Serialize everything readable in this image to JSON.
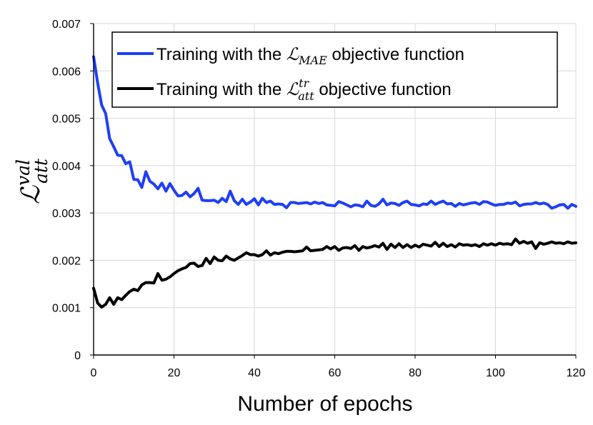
{
  "chart_data": {
    "type": "line",
    "title": "",
    "xlabel": "Number of epochs",
    "ylabel": {
      "script": "ℒ",
      "superscript": "val",
      "subscript": "att"
    },
    "xlim": [
      0,
      120
    ],
    "ylim": [
      0,
      0.007
    ],
    "x_ticks": [
      "0",
      "20",
      "40",
      "60",
      "80",
      "100",
      "120"
    ],
    "y_ticks": [
      "0",
      "0.001",
      "0.002",
      "0.003",
      "0.004",
      "0.005",
      "0.006",
      "0.007"
    ],
    "grid": true,
    "legend_position": "top-right",
    "series": [
      {
        "legend": {
          "prefix": "Training with the ",
          "script": "ℒ",
          "superscript": "",
          "subscript": "MAE",
          "suffix": " objective function"
        },
        "color": "#1f3ff5",
        "values": [
          0.0063,
          0.00575,
          0.00528,
          0.0051,
          0.00457,
          0.0044,
          0.00422,
          0.00421,
          0.00404,
          0.00408,
          0.00371,
          0.0037,
          0.00354,
          0.00387,
          0.00367,
          0.00361,
          0.00351,
          0.00363,
          0.00346,
          0.00362,
          0.00348,
          0.00336,
          0.00337,
          0.00344,
          0.00334,
          0.00341,
          0.00352,
          0.00327,
          0.00326,
          0.00326,
          0.00327,
          0.00322,
          0.00331,
          0.00324,
          0.00346,
          0.00326,
          0.00318,
          0.00329,
          0.00318,
          0.00323,
          0.0033,
          0.00317,
          0.00331,
          0.00322,
          0.00325,
          0.00318,
          0.00319,
          0.00318,
          0.00311,
          0.00322,
          0.00322,
          0.0032,
          0.00321,
          0.00322,
          0.00319,
          0.00323,
          0.0032,
          0.00322,
          0.00317,
          0.00316,
          0.00315,
          0.00324,
          0.00321,
          0.00317,
          0.00313,
          0.00317,
          0.00316,
          0.00313,
          0.00325,
          0.00316,
          0.00314,
          0.00319,
          0.00329,
          0.00317,
          0.00321,
          0.0032,
          0.00316,
          0.00322,
          0.00325,
          0.00318,
          0.00317,
          0.00315,
          0.00319,
          0.00318,
          0.00325,
          0.00318,
          0.00322,
          0.00325,
          0.00319,
          0.0032,
          0.00314,
          0.0032,
          0.00317,
          0.00319,
          0.00321,
          0.00322,
          0.00318,
          0.00324,
          0.00323,
          0.00319,
          0.00316,
          0.00318,
          0.00318,
          0.00321,
          0.0032,
          0.00323,
          0.00315,
          0.00318,
          0.00319,
          0.00319,
          0.00322,
          0.00319,
          0.00321,
          0.00318,
          0.0031,
          0.00313,
          0.00317,
          0.00318,
          0.0031,
          0.00318,
          0.00314
        ]
      },
      {
        "legend": {
          "prefix": "Training with the ",
          "script": "ℒ",
          "superscript": "tr",
          "subscript": "att",
          "suffix": " objective function"
        },
        "color": "#000000",
        "values": [
          0.00141,
          0.0011,
          0.00101,
          0.00107,
          0.00121,
          0.00107,
          0.00121,
          0.00117,
          0.00126,
          0.00134,
          0.00139,
          0.00136,
          0.00148,
          0.00153,
          0.00153,
          0.00152,
          0.00172,
          0.00158,
          0.0016,
          0.00165,
          0.00172,
          0.00178,
          0.00182,
          0.00185,
          0.00193,
          0.00194,
          0.00187,
          0.00189,
          0.00204,
          0.00193,
          0.00207,
          0.002,
          0.00199,
          0.00209,
          0.00203,
          0.002,
          0.00205,
          0.0021,
          0.00216,
          0.00212,
          0.00212,
          0.00209,
          0.00212,
          0.0022,
          0.00211,
          0.00216,
          0.00214,
          0.00217,
          0.00219,
          0.00219,
          0.00218,
          0.00219,
          0.0022,
          0.00228,
          0.0022,
          0.00221,
          0.00222,
          0.00223,
          0.00229,
          0.00224,
          0.00229,
          0.00221,
          0.00226,
          0.00227,
          0.00225,
          0.00231,
          0.00221,
          0.00229,
          0.00226,
          0.00228,
          0.00231,
          0.00228,
          0.00236,
          0.00223,
          0.00234,
          0.00227,
          0.00235,
          0.00227,
          0.00233,
          0.00227,
          0.00232,
          0.00228,
          0.00234,
          0.00232,
          0.0023,
          0.00238,
          0.00229,
          0.00236,
          0.00229,
          0.00233,
          0.00228,
          0.00235,
          0.00232,
          0.00233,
          0.00231,
          0.00233,
          0.00229,
          0.00235,
          0.00232,
          0.00235,
          0.00232,
          0.00236,
          0.00234,
          0.00235,
          0.00233,
          0.00245,
          0.00236,
          0.0024,
          0.00236,
          0.00239,
          0.00225,
          0.00237,
          0.00234,
          0.00236,
          0.00239,
          0.00236,
          0.00237,
          0.00235,
          0.00239,
          0.00236,
          0.00237
        ]
      }
    ]
  }
}
